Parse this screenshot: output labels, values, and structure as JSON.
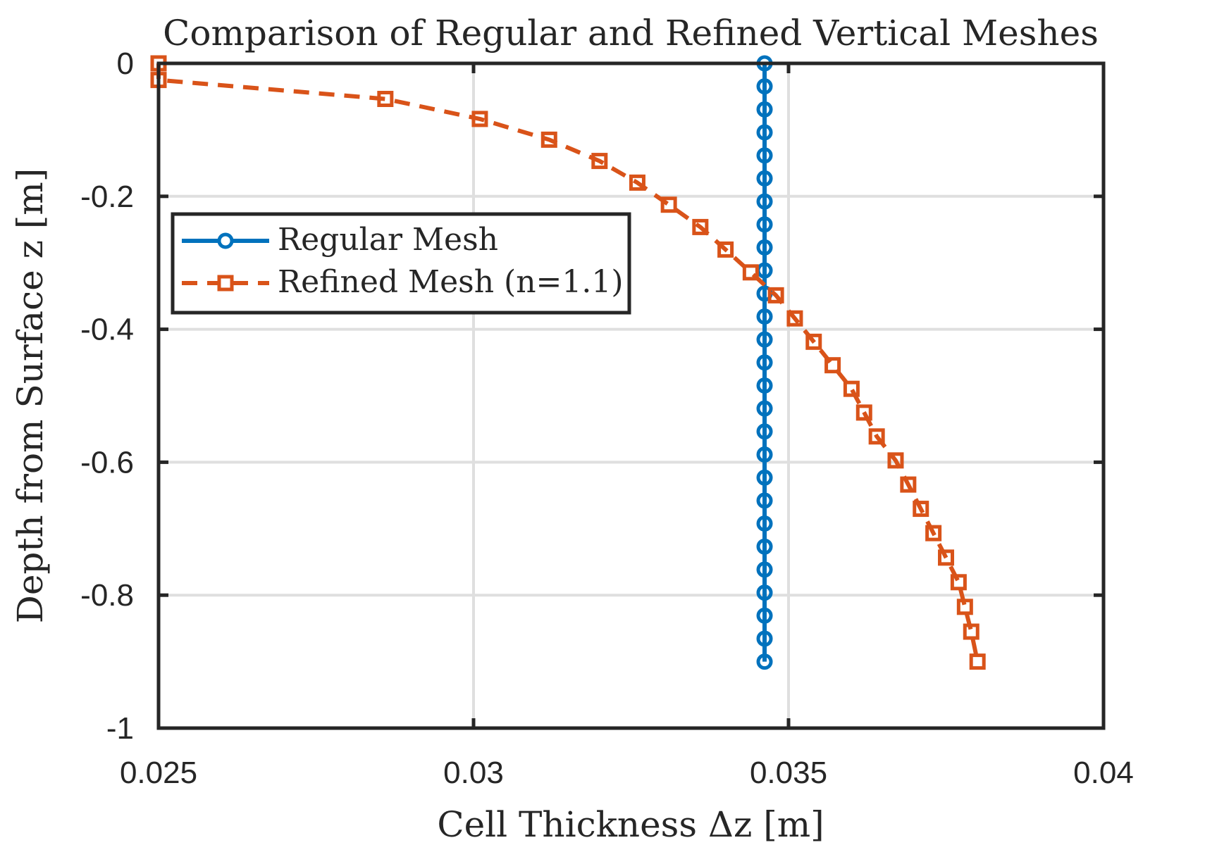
{
  "chart_data": {
    "type": "line",
    "title": "Comparison of Regular and Refined Vertical Meshes",
    "xlabel": "Cell Thickness Δz [m]",
    "ylabel": "Depth from Surface z [m]",
    "xlim": [
      0.025,
      0.04
    ],
    "ylim": [
      -1,
      0
    ],
    "xticks": [
      "0.025",
      "0.03",
      "0.035",
      "0.04"
    ],
    "yticks": [
      "0",
      "-0.2",
      "-0.4",
      "-0.6",
      "-0.8",
      "-1"
    ],
    "grid": true,
    "legend_position": "upper-left",
    "series": [
      {
        "name": "Regular Mesh",
        "color": "#0072BD",
        "marker": "circle",
        "line_style": "solid",
        "x": [
          0.03462,
          0.03462,
          0.03462,
          0.03462,
          0.03462,
          0.03462,
          0.03462,
          0.03462,
          0.03462,
          0.03462,
          0.03462,
          0.03462,
          0.03462,
          0.03462,
          0.03462,
          0.03462,
          0.03462,
          0.03462,
          0.03462,
          0.03462,
          0.03462,
          0.03462,
          0.03462,
          0.03462,
          0.03462,
          0.03462,
          0.03462
        ],
        "y": [
          0,
          -0.0346,
          -0.0692,
          -0.1038,
          -0.1385,
          -0.1731,
          -0.2077,
          -0.2423,
          -0.2769,
          -0.3115,
          -0.3462,
          -0.3808,
          -0.4154,
          -0.45,
          -0.4846,
          -0.5192,
          -0.5538,
          -0.5885,
          -0.6231,
          -0.6577,
          -0.6923,
          -0.7269,
          -0.7615,
          -0.7962,
          -0.8308,
          -0.8654,
          -0.9
        ]
      },
      {
        "name": "Refined Mesh (n=1.1)",
        "color": "#D95319",
        "marker": "square",
        "line_style": "dashed",
        "x": [
          0.025,
          0.025,
          0.0286,
          0.0301,
          0.0312,
          0.032,
          0.0326,
          0.0331,
          0.0336,
          0.034,
          0.0344,
          0.0348,
          0.0351,
          0.0354,
          0.0357,
          0.036,
          0.0362,
          0.0364,
          0.0367,
          0.0369,
          0.0371,
          0.0373,
          0.0375,
          0.0377,
          0.0378,
          0.0379,
          0.038
        ],
        "y": [
          0,
          -0.025,
          -0.0535,
          -0.0836,
          -0.1148,
          -0.1468,
          -0.1794,
          -0.2126,
          -0.2462,
          -0.2801,
          -0.3144,
          -0.3489,
          -0.3837,
          -0.4188,
          -0.4541,
          -0.4896,
          -0.5253,
          -0.5612,
          -0.5973,
          -0.6336,
          -0.6701,
          -0.7067,
          -0.7435,
          -0.7805,
          -0.8176,
          -0.8549,
          -0.9
        ]
      }
    ]
  }
}
